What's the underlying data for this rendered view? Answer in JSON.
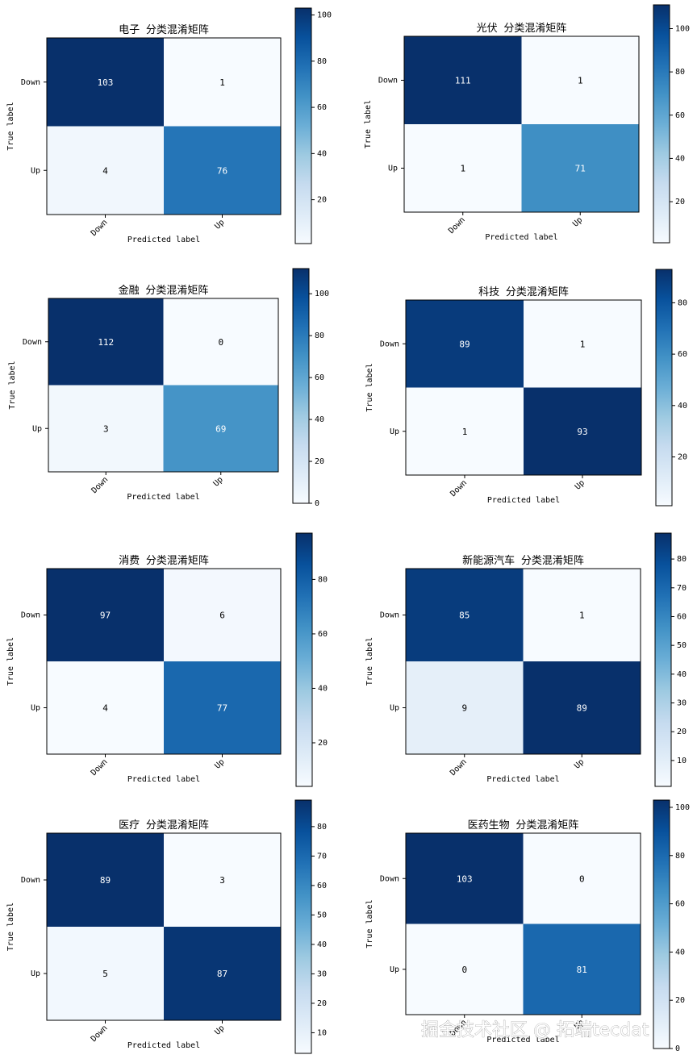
{
  "figure": {
    "watermark": "掘金技术社区 @ 拓端tecdat"
  },
  "chart_data": [
    {
      "type": "heatmap",
      "title": "电子 分类混淆矩阵",
      "xlabel": "Predicted label",
      "ylabel": "True label",
      "xticks": [
        "Down",
        "Up"
      ],
      "yticks": [
        "Down",
        "Up"
      ],
      "values": [
        [
          103,
          1
        ],
        [
          4,
          76
        ]
      ],
      "colormap": "Blues",
      "colorbar_ticks": [
        20,
        40,
        60,
        80,
        100
      ]
    },
    {
      "type": "heatmap",
      "title": "光伏 分类混淆矩阵",
      "xlabel": "Predicted label",
      "ylabel": "True label",
      "xticks": [
        "Down",
        "Up"
      ],
      "yticks": [
        "Down",
        "Up"
      ],
      "values": [
        [
          111,
          1
        ],
        [
          1,
          71
        ]
      ],
      "colormap": "Blues",
      "colorbar_ticks": [
        20,
        40,
        60,
        80,
        100
      ]
    },
    {
      "type": "heatmap",
      "title": "金融 分类混淆矩阵",
      "xlabel": "Predicted label",
      "ylabel": "True label",
      "xticks": [
        "Down",
        "Up"
      ],
      "yticks": [
        "Down",
        "Up"
      ],
      "values": [
        [
          112,
          0
        ],
        [
          3,
          69
        ]
      ],
      "colormap": "Blues",
      "colorbar_ticks": [
        0,
        20,
        40,
        60,
        80,
        100
      ]
    },
    {
      "type": "heatmap",
      "title": "科技 分类混淆矩阵",
      "xlabel": "Predicted label",
      "ylabel": "True label",
      "xticks": [
        "Down",
        "Up"
      ],
      "yticks": [
        "Down",
        "Up"
      ],
      "values": [
        [
          89,
          1
        ],
        [
          1,
          93
        ]
      ],
      "colormap": "Blues",
      "colorbar_ticks": [
        20,
        40,
        60,
        80
      ]
    },
    {
      "type": "heatmap",
      "title": "消费 分类混淆矩阵",
      "xlabel": "Predicted label",
      "ylabel": "True label",
      "xticks": [
        "Down",
        "Up"
      ],
      "yticks": [
        "Down",
        "Up"
      ],
      "values": [
        [
          97,
          6
        ],
        [
          4,
          77
        ]
      ],
      "colormap": "Blues",
      "colorbar_ticks": [
        20,
        40,
        60,
        80
      ]
    },
    {
      "type": "heatmap",
      "title": "新能源汽车 分类混淆矩阵",
      "xlabel": "Predicted label",
      "ylabel": "True label",
      "xticks": [
        "Down",
        "Up"
      ],
      "yticks": [
        "Down",
        "Up"
      ],
      "values": [
        [
          85,
          1
        ],
        [
          9,
          89
        ]
      ],
      "colormap": "Blues",
      "colorbar_ticks": [
        10,
        20,
        30,
        40,
        50,
        60,
        70,
        80
      ]
    },
    {
      "type": "heatmap",
      "title": "医疗 分类混淆矩阵",
      "xlabel": "Predicted label",
      "ylabel": "True label",
      "xticks": [
        "Down",
        "Up"
      ],
      "yticks": [
        "Down",
        "Up"
      ],
      "values": [
        [
          89,
          3
        ],
        [
          5,
          87
        ]
      ],
      "colormap": "Blues",
      "colorbar_ticks": [
        10,
        20,
        30,
        40,
        50,
        60,
        70,
        80
      ]
    },
    {
      "type": "heatmap",
      "title": "医药生物 分类混淆矩阵",
      "xlabel": "Predicted label",
      "ylabel": "True label",
      "xticks": [
        "Down",
        "Up"
      ],
      "yticks": [
        "Down",
        "Up"
      ],
      "values": [
        [
          103,
          0
        ],
        [
          0,
          81
        ]
      ],
      "colormap": "Blues",
      "colorbar_ticks": [
        0,
        20,
        40,
        60,
        80,
        100
      ]
    }
  ]
}
